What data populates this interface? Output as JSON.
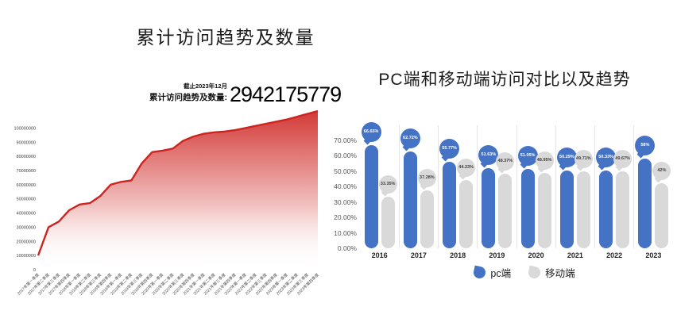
{
  "chart_data": [
    {
      "type": "area",
      "title": "累计访问趋势及数量",
      "annotation_asof": "截止2023年12月",
      "annotation_label": "累计访问趋势及数量:",
      "annotation_value": "2942175779",
      "x": [
        "2017年第一季度",
        "2017年第二季度",
        "2017年第三季度",
        "2017年第四季度",
        "2018年第一季度",
        "2018年第二季度",
        "2018年第三季度",
        "2018年第四季度",
        "2019年第一季度",
        "2019年第二季度",
        "2019年第三季度",
        "2019年第四季度",
        "2020年第一季度",
        "2020年第二季度",
        "2020年第三季度",
        "2020年第四季度",
        "2021年第一季度",
        "2021年第二季度",
        "2021年第三季度",
        "2021年第四季度",
        "2022年第一季度",
        "2022年第二季度",
        "2022年第三季度",
        "2022年第四季度",
        "2023年第一季度",
        "2023年第二季度",
        "2023年第三季度",
        "2023年第四季度"
      ],
      "values": [
        10000000,
        30000000,
        34000000,
        42000000,
        46000000,
        47000000,
        52000000,
        60000000,
        62000000,
        63000000,
        75000000,
        83000000,
        84000000,
        85500000,
        91000000,
        94000000,
        96000000,
        97000000,
        97500000,
        98500000,
        100000000,
        101500000,
        103000000,
        104500000,
        106000000,
        108000000,
        110000000,
        112000000
      ],
      "y_ticks": [
        "100000000",
        "90000000",
        "80000000",
        "70000000",
        "60000000",
        "50000000",
        "40000000",
        "30000000",
        "20000000",
        "10000000",
        "0"
      ],
      "ylim": [
        0,
        100000000
      ],
      "line_color": "#ce2420",
      "fill": "vertical gradient red to white",
      "grid": false,
      "xlabel": "",
      "ylabel": ""
    },
    {
      "type": "bar",
      "title": "PC端和移动端访问对比以及趋势",
      "categories": [
        "2016",
        "2017",
        "2018",
        "2019",
        "2020",
        "2021",
        "2022",
        "2023"
      ],
      "series": [
        {
          "name": "pc端",
          "color": "#4472c4",
          "label_text_color": "#ffffff",
          "values": [
            66.65,
            62.72,
            55.77,
            51.63,
            51.05,
            50.29,
            50.33,
            58
          ],
          "labels": [
            "66.65%",
            "62.72%",
            "55.77%",
            "51.63%",
            "51.05%",
            "50.29%",
            "50.33%",
            "58%"
          ]
        },
        {
          "name": "移动端",
          "color": "#d9d9d9",
          "label_text_color": "#404040",
          "values": [
            33.35,
            37.28,
            44.23,
            48.37,
            48.95,
            49.71,
            49.67,
            42
          ],
          "labels": [
            "33.35%",
            "37.28%",
            "44.23%",
            "48.37%",
            "48.95%",
            "49.71%",
            "49.67%",
            "42%"
          ]
        }
      ],
      "y_ticks": [
        "70.00%",
        "60.00%",
        "50.00%",
        "40.00%",
        "30.00%",
        "20.00%",
        "10.00%",
        "0.00%"
      ],
      "ylim": [
        0,
        70
      ],
      "grid": false,
      "legend_position": "bottom",
      "separator_color": "#e5e5e9"
    }
  ]
}
